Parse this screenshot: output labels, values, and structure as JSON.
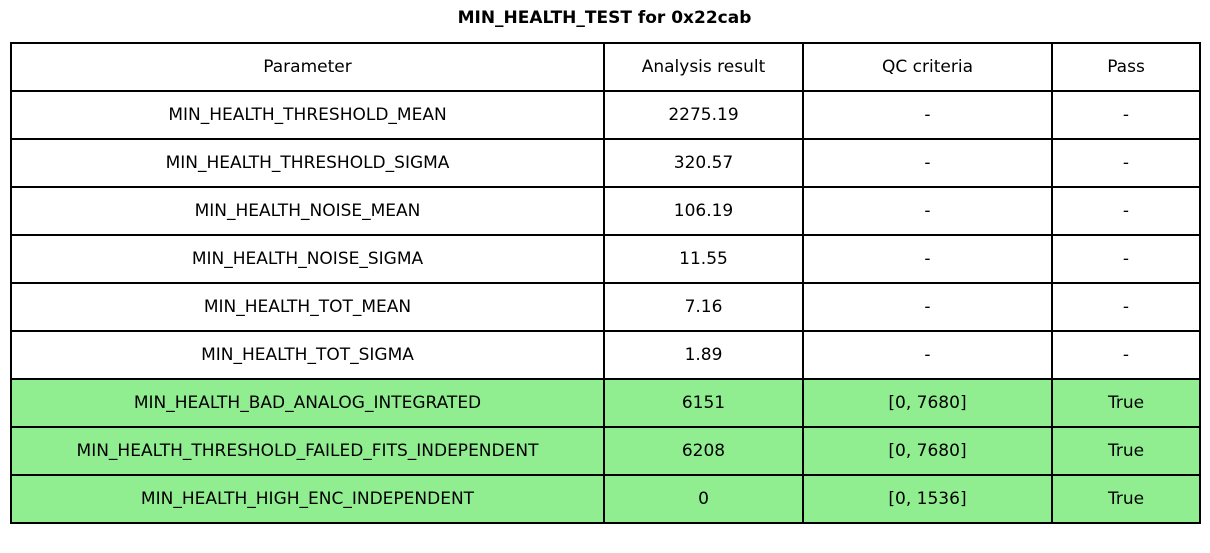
{
  "page": {
    "title": "MIN_HEALTH_TEST for 0x22cab"
  },
  "colors": {
    "pass_row_green": "#90EE90",
    "border_black": "#000000",
    "page_background": "#FFFFFF"
  },
  "table": {
    "columns": [
      "Parameter",
      "Analysis result",
      "QC criteria",
      "Pass"
    ],
    "rows": [
      {
        "parameter": "MIN_HEALTH_THRESHOLD_MEAN",
        "result": "2275.19",
        "qc": "-",
        "pass": "-",
        "highlight": false
      },
      {
        "parameter": "MIN_HEALTH_THRESHOLD_SIGMA",
        "result": "320.57",
        "qc": "-",
        "pass": "-",
        "highlight": false
      },
      {
        "parameter": "MIN_HEALTH_NOISE_MEAN",
        "result": "106.19",
        "qc": "-",
        "pass": "-",
        "highlight": false
      },
      {
        "parameter": "MIN_HEALTH_NOISE_SIGMA",
        "result": "11.55",
        "qc": "-",
        "pass": "-",
        "highlight": false
      },
      {
        "parameter": "MIN_HEALTH_TOT_MEAN",
        "result": "7.16",
        "qc": "-",
        "pass": "-",
        "highlight": false
      },
      {
        "parameter": "MIN_HEALTH_TOT_SIGMA",
        "result": "1.89",
        "qc": "-",
        "pass": "-",
        "highlight": false
      },
      {
        "parameter": "MIN_HEALTH_BAD_ANALOG_INTEGRATED",
        "result": "6151",
        "qc": "[0, 7680]",
        "pass": "True",
        "highlight": true
      },
      {
        "parameter": "MIN_HEALTH_THRESHOLD_FAILED_FITS_INDEPENDENT",
        "result": "6208",
        "qc": "[0, 7680]",
        "pass": "True",
        "highlight": true
      },
      {
        "parameter": "MIN_HEALTH_HIGH_ENC_INDEPENDENT",
        "result": "0",
        "qc": "[0, 1536]",
        "pass": "True",
        "highlight": true
      }
    ]
  },
  "chart_data": {
    "type": "table",
    "title": "MIN_HEALTH_TEST for 0x22cab",
    "columns": [
      "Parameter",
      "Analysis result",
      "QC criteria",
      "Pass"
    ],
    "rows": [
      [
        "MIN_HEALTH_THRESHOLD_MEAN",
        2275.19,
        "-",
        "-"
      ],
      [
        "MIN_HEALTH_THRESHOLD_SIGMA",
        320.57,
        "-",
        "-"
      ],
      [
        "MIN_HEALTH_NOISE_MEAN",
        106.19,
        "-",
        "-"
      ],
      [
        "MIN_HEALTH_NOISE_SIGMA",
        11.55,
        "-",
        "-"
      ],
      [
        "MIN_HEALTH_TOT_MEAN",
        7.16,
        "-",
        "-"
      ],
      [
        "MIN_HEALTH_TOT_SIGMA",
        1.89,
        "-",
        "-"
      ],
      [
        "MIN_HEALTH_BAD_ANALOG_INTEGRATED",
        6151,
        "[0, 7680]",
        "True"
      ],
      [
        "MIN_HEALTH_THRESHOLD_FAILED_FITS_INDEPENDENT",
        6208,
        "[0, 7680]",
        "True"
      ],
      [
        "MIN_HEALTH_HIGH_ENC_INDEPENDENT",
        0,
        "[0, 1536]",
        "True"
      ]
    ],
    "highlighted_rows": [
      6,
      7,
      8
    ],
    "highlight_color": "#90EE90",
    "legend_position": "none",
    "grid": "full-cell-borders"
  }
}
